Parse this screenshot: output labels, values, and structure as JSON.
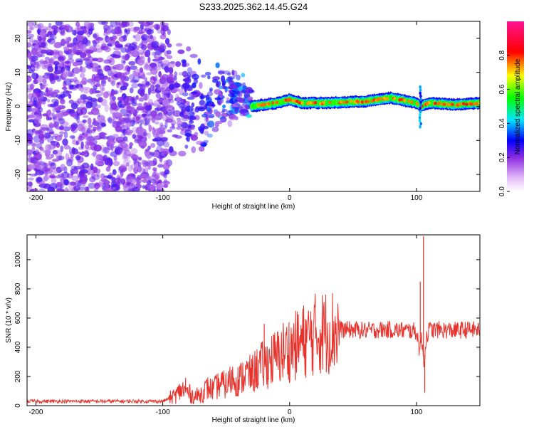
{
  "title": "S233.2025.362.14.45.G24",
  "chart_data": [
    {
      "type": "heatmap",
      "name": "spectrogram",
      "xlabel": "Height of straight line (km)",
      "ylabel": "Frequency (Hz)",
      "xlim": [
        -207,
        150
      ],
      "ylim": [
        -25,
        25
      ],
      "xticks": [
        -200,
        -100,
        0,
        100
      ],
      "yticks": [
        -20,
        -10,
        0,
        10,
        20
      ],
      "noise_region": [
        -207,
        -95
      ],
      "transition_region": [
        -95,
        -30
      ],
      "signal_track": {
        "x": [
          -30,
          -20,
          -10,
          0,
          10,
          30,
          60,
          80,
          100,
          103,
          110,
          130,
          150
        ],
        "freq": [
          0,
          0.5,
          1,
          2,
          1,
          1,
          1.5,
          2.5,
          1,
          0,
          1,
          0.5,
          1
        ]
      },
      "colorbar": {
        "label": "Normalized spectral amplitude",
        "range": [
          0,
          1
        ],
        "ticks": [
          "0.0",
          "0.2",
          "0.4",
          "0.6",
          "0.8"
        ],
        "colormap": [
          "#ffffff",
          "#8a2be2",
          "#0000ff",
          "#00e5ff",
          "#00ff00",
          "#ffff00",
          "#ff0000",
          "#ff1493"
        ]
      }
    },
    {
      "type": "line",
      "name": "snr",
      "xlabel": "Height of straight line (km)",
      "ylabel": "SNR (10 * v/v)",
      "xlim": [
        -207,
        150
      ],
      "ylim": [
        0,
        1170
      ],
      "xticks": [
        -200,
        -100,
        0,
        100
      ],
      "yticks": [
        0,
        200,
        400,
        600,
        800,
        1000
      ],
      "color": "#e8322b",
      "series": [
        {
          "name": "SNR",
          "x": [
            -207,
            -180,
            -150,
            -120,
            -100,
            -90,
            -85,
            -80,
            -75,
            -70,
            -65,
            -60,
            -55,
            -50,
            -45,
            -40,
            -35,
            -30,
            -25,
            -20,
            -15,
            -10,
            -5,
            0,
            5,
            10,
            15,
            20,
            25,
            30,
            35,
            40,
            50,
            60,
            70,
            80,
            90,
            100,
            102,
            104,
            106,
            108,
            110,
            120,
            130,
            140,
            150
          ],
          "y": [
            30,
            30,
            30,
            30,
            30,
            70,
            110,
            90,
            60,
            80,
            120,
            110,
            150,
            140,
            190,
            170,
            220,
            210,
            260,
            280,
            310,
            330,
            370,
            390,
            410,
            440,
            460,
            490,
            500,
            510,
            515,
            520,
            520,
            515,
            520,
            520,
            515,
            510,
            400,
            450,
            300,
            480,
            520,
            520,
            515,
            520,
            520
          ]
        }
      ],
      "annotations": {
        "spikes": [
          {
            "x": -20,
            "y": 560
          },
          {
            "x": -82,
            "y": 190
          },
          {
            "x": 105.5,
            "y": 1160
          },
          {
            "x": 103,
            "y": 850
          },
          {
            "x": 106.5,
            "y": 90
          }
        ]
      }
    }
  ]
}
